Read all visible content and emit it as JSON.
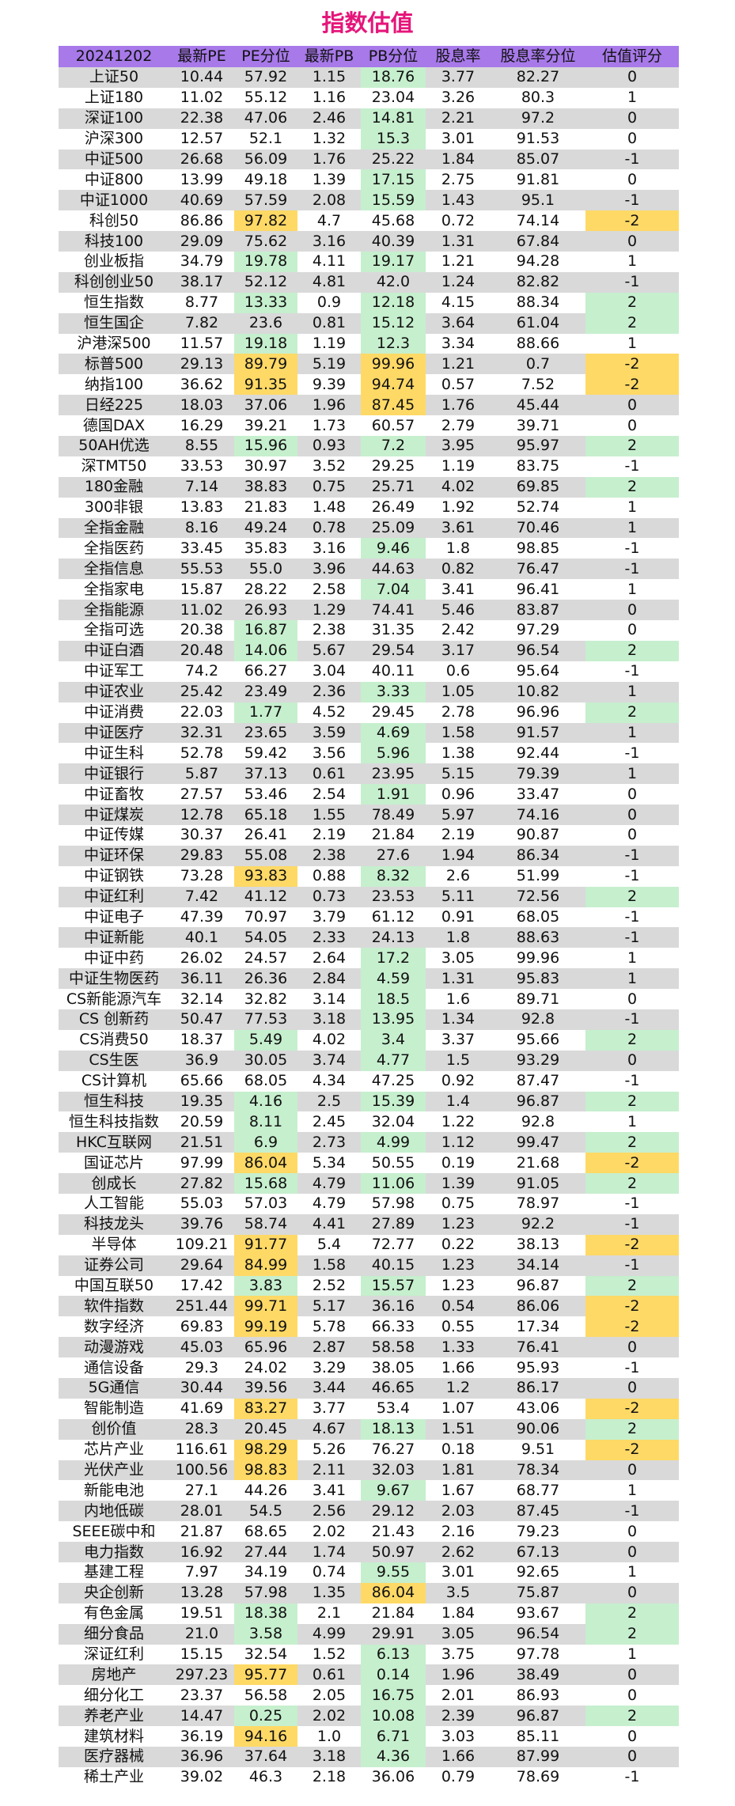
{
  "title": "指数估值",
  "colors": {
    "header": "#a779e9",
    "title": "#e5157a",
    "low": "#c6efce",
    "high": "#ffd966",
    "row_shade": "#d9d9d9"
  },
  "chart_data": {
    "type": "table",
    "columns": [
      "20241202",
      "最新PE",
      "PE分位",
      "最新PB",
      "PB分位",
      "股息率",
      "股息率分位",
      "估值评分"
    ],
    "rows": [
      [
        "上证50",
        "10.44",
        "57.92",
        "1.15",
        "18.76",
        "3.77",
        "82.27",
        "0"
      ],
      [
        "上证180",
        "11.02",
        "55.12",
        "1.16",
        "23.04",
        "3.26",
        "80.3",
        "1"
      ],
      [
        "深证100",
        "22.38",
        "47.06",
        "2.46",
        "14.81",
        "2.21",
        "97.2",
        "0"
      ],
      [
        "沪深300",
        "12.57",
        "52.1",
        "1.32",
        "15.3",
        "3.01",
        "91.53",
        "0"
      ],
      [
        "中证500",
        "26.68",
        "56.09",
        "1.76",
        "25.22",
        "1.84",
        "85.07",
        "-1"
      ],
      [
        "中证800",
        "13.99",
        "49.18",
        "1.39",
        "17.15",
        "2.75",
        "91.81",
        "0"
      ],
      [
        "中证1000",
        "40.69",
        "57.59",
        "2.08",
        "15.59",
        "1.43",
        "95.1",
        "-1"
      ],
      [
        "科创50",
        "86.86",
        "97.82",
        "4.7",
        "45.68",
        "0.72",
        "74.14",
        "-2"
      ],
      [
        "科技100",
        "29.09",
        "75.62",
        "3.16",
        "40.39",
        "1.31",
        "67.84",
        "0"
      ],
      [
        "创业板指",
        "34.79",
        "19.78",
        "4.11",
        "19.17",
        "1.21",
        "94.28",
        "1"
      ],
      [
        "科创创业50",
        "38.17",
        "52.12",
        "4.81",
        "42.0",
        "1.24",
        "82.82",
        "-1"
      ],
      [
        "恒生指数",
        "8.77",
        "13.33",
        "0.9",
        "12.18",
        "4.15",
        "88.34",
        "2"
      ],
      [
        "恒生国企",
        "7.82",
        "23.6",
        "0.81",
        "15.12",
        "3.64",
        "61.04",
        "2"
      ],
      [
        "沪港深500",
        "11.57",
        "19.18",
        "1.19",
        "12.3",
        "3.34",
        "88.66",
        "1"
      ],
      [
        "标普500",
        "29.13",
        "89.79",
        "5.19",
        "99.96",
        "1.21",
        "0.7",
        "-2"
      ],
      [
        "纳指100",
        "36.62",
        "91.35",
        "9.39",
        "94.74",
        "0.57",
        "7.52",
        "-2"
      ],
      [
        "日经225",
        "18.03",
        "37.06",
        "1.96",
        "87.45",
        "1.76",
        "45.44",
        "0"
      ],
      [
        "德国DAX",
        "16.29",
        "39.21",
        "1.73",
        "60.57",
        "2.79",
        "39.71",
        "0"
      ],
      [
        "50AH优选",
        "8.55",
        "15.96",
        "0.93",
        "7.2",
        "3.95",
        "95.97",
        "2"
      ],
      [
        "深TMT50",
        "33.53",
        "30.97",
        "3.52",
        "29.25",
        "1.19",
        "83.75",
        "-1"
      ],
      [
        "180金融",
        "7.14",
        "38.83",
        "0.75",
        "25.71",
        "4.02",
        "69.85",
        "2"
      ],
      [
        "300非银",
        "13.83",
        "21.83",
        "1.48",
        "26.49",
        "1.92",
        "52.74",
        "1"
      ],
      [
        "全指金融",
        "8.16",
        "49.24",
        "0.78",
        "25.09",
        "3.61",
        "70.46",
        "1"
      ],
      [
        "全指医药",
        "33.45",
        "35.83",
        "3.16",
        "9.46",
        "1.8",
        "98.85",
        "-1"
      ],
      [
        "全指信息",
        "55.53",
        "55.0",
        "3.96",
        "44.63",
        "0.82",
        "76.47",
        "-1"
      ],
      [
        "全指家电",
        "15.87",
        "28.22",
        "2.58",
        "7.04",
        "3.41",
        "96.41",
        "1"
      ],
      [
        "全指能源",
        "11.02",
        "26.93",
        "1.29",
        "74.41",
        "5.46",
        "83.87",
        "0"
      ],
      [
        "全指可选",
        "20.38",
        "16.87",
        "2.38",
        "31.35",
        "2.42",
        "97.29",
        "0"
      ],
      [
        "中证白酒",
        "20.48",
        "14.06",
        "5.67",
        "29.54",
        "3.17",
        "96.54",
        "2"
      ],
      [
        "中证军工",
        "74.2",
        "66.27",
        "3.04",
        "40.11",
        "0.6",
        "95.64",
        "-1"
      ],
      [
        "中证农业",
        "25.42",
        "23.49",
        "2.36",
        "3.33",
        "1.05",
        "10.82",
        "1"
      ],
      [
        "中证消费",
        "22.03",
        "1.77",
        "4.52",
        "29.45",
        "2.78",
        "96.96",
        "2"
      ],
      [
        "中证医疗",
        "32.31",
        "23.65",
        "3.59",
        "4.69",
        "1.58",
        "91.57",
        "1"
      ],
      [
        "中证生科",
        "52.78",
        "59.42",
        "3.56",
        "5.96",
        "1.38",
        "92.44",
        "-1"
      ],
      [
        "中证银行",
        "5.87",
        "37.13",
        "0.61",
        "23.95",
        "5.15",
        "79.39",
        "1"
      ],
      [
        "中证畜牧",
        "27.57",
        "53.46",
        "2.54",
        "1.91",
        "0.96",
        "33.47",
        "0"
      ],
      [
        "中证煤炭",
        "12.78",
        "65.18",
        "1.55",
        "78.49",
        "5.97",
        "74.16",
        "0"
      ],
      [
        "中证传媒",
        "30.37",
        "26.41",
        "2.19",
        "21.84",
        "2.19",
        "90.87",
        "0"
      ],
      [
        "中证环保",
        "29.83",
        "55.08",
        "2.38",
        "27.6",
        "1.94",
        "86.34",
        "-1"
      ],
      [
        "中证钢铁",
        "73.28",
        "93.83",
        "0.88",
        "8.32",
        "2.6",
        "51.99",
        "-1"
      ],
      [
        "中证红利",
        "7.42",
        "41.12",
        "0.73",
        "23.53",
        "5.11",
        "72.56",
        "2"
      ],
      [
        "中证电子",
        "47.39",
        "70.97",
        "3.79",
        "61.12",
        "0.91",
        "68.05",
        "-1"
      ],
      [
        "中证新能",
        "40.1",
        "54.05",
        "2.33",
        "24.13",
        "1.8",
        "88.63",
        "-1"
      ],
      [
        "中证中药",
        "26.02",
        "24.57",
        "2.64",
        "17.2",
        "3.05",
        "99.96",
        "1"
      ],
      [
        "中证生物医药",
        "36.11",
        "26.36",
        "2.84",
        "4.59",
        "1.31",
        "95.83",
        "1"
      ],
      [
        "CS新能源汽车",
        "32.14",
        "32.82",
        "3.14",
        "18.5",
        "1.6",
        "89.71",
        "0"
      ],
      [
        "CS 创新药",
        "50.47",
        "77.53",
        "3.18",
        "13.95",
        "1.34",
        "92.8",
        "-1"
      ],
      [
        "CS消费50",
        "18.37",
        "5.49",
        "4.02",
        "3.4",
        "3.37",
        "95.66",
        "2"
      ],
      [
        "CS生医",
        "36.9",
        "30.05",
        "3.74",
        "4.77",
        "1.5",
        "93.29",
        "0"
      ],
      [
        "CS计算机",
        "65.66",
        "68.05",
        "4.34",
        "47.25",
        "0.92",
        "87.47",
        "-1"
      ],
      [
        "恒生科技",
        "19.35",
        "4.16",
        "2.5",
        "15.39",
        "1.4",
        "96.87",
        "2"
      ],
      [
        "恒生科技指数",
        "20.59",
        "8.11",
        "2.45",
        "32.04",
        "1.22",
        "92.8",
        "1"
      ],
      [
        "HKC互联网",
        "21.51",
        "6.9",
        "2.73",
        "4.99",
        "1.12",
        "99.47",
        "2"
      ],
      [
        "国证芯片",
        "97.99",
        "86.04",
        "5.34",
        "50.55",
        "0.19",
        "21.68",
        "-2"
      ],
      [
        "创成长",
        "27.82",
        "15.68",
        "4.79",
        "11.06",
        "1.39",
        "91.05",
        "2"
      ],
      [
        "人工智能",
        "55.03",
        "57.03",
        "4.79",
        "57.98",
        "0.75",
        "78.97",
        "-1"
      ],
      [
        "科技龙头",
        "39.76",
        "58.74",
        "4.41",
        "27.89",
        "1.23",
        "92.2",
        "-1"
      ],
      [
        "半导体",
        "109.21",
        "91.77",
        "5.4",
        "72.77",
        "0.22",
        "38.13",
        "-2"
      ],
      [
        "证券公司",
        "29.64",
        "84.99",
        "1.58",
        "40.15",
        "1.23",
        "34.14",
        "-1"
      ],
      [
        "中国互联50",
        "17.42",
        "3.83",
        "2.52",
        "15.57",
        "1.23",
        "96.87",
        "2"
      ],
      [
        "软件指数",
        "251.44",
        "99.71",
        "5.17",
        "36.16",
        "0.54",
        "86.06",
        "-2"
      ],
      [
        "数字经济",
        "69.83",
        "99.19",
        "5.78",
        "66.33",
        "0.55",
        "17.34",
        "-2"
      ],
      [
        "动漫游戏",
        "45.03",
        "65.96",
        "2.87",
        "58.58",
        "1.33",
        "76.41",
        "0"
      ],
      [
        "通信设备",
        "29.3",
        "24.02",
        "3.29",
        "38.05",
        "1.66",
        "95.93",
        "-1"
      ],
      [
        "5G通信",
        "30.44",
        "39.56",
        "3.44",
        "46.65",
        "1.2",
        "86.17",
        "0"
      ],
      [
        "智能制造",
        "41.69",
        "83.27",
        "3.77",
        "53.4",
        "1.07",
        "43.06",
        "-2"
      ],
      [
        "创价值",
        "28.3",
        "20.45",
        "4.67",
        "18.13",
        "1.51",
        "90.06",
        "2"
      ],
      [
        "芯片产业",
        "116.61",
        "98.29",
        "5.26",
        "76.27",
        "0.18",
        "9.51",
        "-2"
      ],
      [
        "光伏产业",
        "100.56",
        "98.83",
        "2.11",
        "32.03",
        "1.81",
        "78.34",
        "0"
      ],
      [
        "新能电池",
        "27.1",
        "44.26",
        "3.41",
        "9.67",
        "1.67",
        "68.77",
        "1"
      ],
      [
        "内地低碳",
        "28.01",
        "54.5",
        "2.56",
        "29.12",
        "2.03",
        "87.45",
        "-1"
      ],
      [
        "SEEE碳中和",
        "21.87",
        "68.65",
        "2.02",
        "21.43",
        "2.16",
        "79.23",
        "0"
      ],
      [
        "电力指数",
        "16.92",
        "27.44",
        "1.74",
        "50.97",
        "2.62",
        "67.13",
        "0"
      ],
      [
        "基建工程",
        "7.97",
        "34.19",
        "0.74",
        "9.55",
        "3.01",
        "92.65",
        "1"
      ],
      [
        "央企创新",
        "13.28",
        "57.98",
        "1.35",
        "86.04",
        "3.5",
        "75.87",
        "0"
      ],
      [
        "有色金属",
        "19.51",
        "18.38",
        "2.1",
        "21.84",
        "1.84",
        "93.67",
        "2"
      ],
      [
        "细分食品",
        "21.0",
        "3.58",
        "4.99",
        "29.91",
        "3.05",
        "96.54",
        "2"
      ],
      [
        "深证红利",
        "15.15",
        "32.54",
        "1.52",
        "6.13",
        "3.75",
        "97.78",
        "1"
      ],
      [
        "房地产",
        "297.23",
        "95.77",
        "0.61",
        "0.14",
        "1.96",
        "38.49",
        "0"
      ],
      [
        "细分化工",
        "23.37",
        "56.58",
        "2.05",
        "16.75",
        "2.01",
        "86.93",
        "0"
      ],
      [
        "养老产业",
        "14.47",
        "0.25",
        "2.02",
        "10.08",
        "2.39",
        "96.87",
        "2"
      ],
      [
        "建筑材料",
        "36.19",
        "94.16",
        "1.0",
        "6.71",
        "3.03",
        "85.11",
        "0"
      ],
      [
        "医疗器械",
        "36.96",
        "37.64",
        "3.18",
        "4.36",
        "1.66",
        "87.99",
        "0"
      ],
      [
        "稀土产业",
        "39.02",
        "46.3",
        "2.18",
        "36.06",
        "0.79",
        "78.69",
        "-1"
      ]
    ]
  }
}
